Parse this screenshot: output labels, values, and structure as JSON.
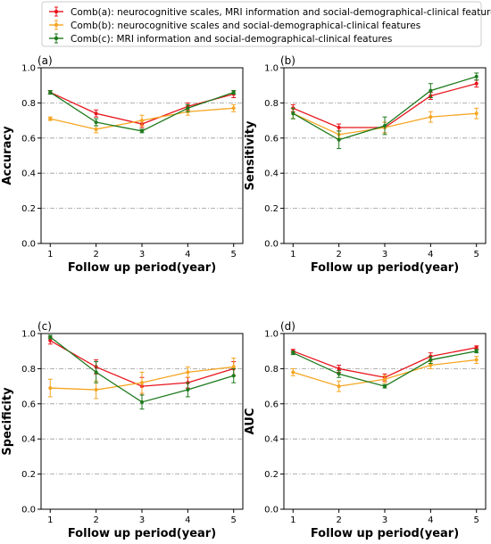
{
  "chart_data": {
    "type": "line",
    "legend": {
      "placement": "top-center",
      "entries": [
        {
          "name": "Comb(a): neurocognitive scales, MRI information and social-demographical-clinical features",
          "color": "#e8141c"
        },
        {
          "name": "Comb(b): neurocognitive scales and social-demographical-clinical features",
          "color": "#f5a623"
        },
        {
          "name": "Comb(c): MRI information and social-demographical-clinical features",
          "color": "#1e7a1e"
        }
      ]
    },
    "panels": [
      {
        "label": "(a)",
        "ylabel": "Accuracy",
        "xlabel": "Follow up period(year)",
        "x": [
          1,
          2,
          3,
          4,
          5
        ],
        "xticks": [
          "1",
          "2",
          "3",
          "4",
          "5"
        ],
        "ylim": [
          0.0,
          1.0
        ],
        "yticks": [
          "0.0",
          "0.2",
          "0.4",
          "0.6",
          "0.8",
          "1.0"
        ],
        "grid": "dash-dot horizontal",
        "series": [
          {
            "values": [
              0.86,
              0.74,
              0.68,
              0.78,
              0.85
            ],
            "err": [
              0.01,
              0.02,
              0.02,
              0.02,
              0.02
            ]
          },
          {
            "values": [
              0.71,
              0.65,
              0.7,
              0.75,
              0.77
            ],
            "err": [
              0.01,
              0.02,
              0.03,
              0.02,
              0.02
            ]
          },
          {
            "values": [
              0.86,
              0.69,
              0.64,
              0.77,
              0.86
            ],
            "err": [
              0.01,
              0.02,
              0.01,
              0.02,
              0.01
            ]
          }
        ]
      },
      {
        "label": "(b)",
        "ylabel": "Sensitivity",
        "xlabel": "Follow up period(year)",
        "x": [
          1,
          2,
          3,
          4,
          5
        ],
        "xticks": [
          "1",
          "2",
          "3",
          "4",
          "5"
        ],
        "ylim": [
          0.0,
          1.0
        ],
        "yticks": [
          "0.0",
          "0.2",
          "0.4",
          "0.6",
          "0.8",
          "1.0"
        ],
        "grid": "dash-dot horizontal",
        "series": [
          {
            "values": [
              0.77,
              0.66,
              0.66,
              0.84,
              0.91
            ],
            "err": [
              0.02,
              0.02,
              0.03,
              0.02,
              0.02
            ]
          },
          {
            "values": [
              0.74,
              0.62,
              0.66,
              0.72,
              0.74
            ],
            "err": [
              0.03,
              0.02,
              0.03,
              0.03,
              0.03
            ]
          },
          {
            "values": [
              0.74,
              0.59,
              0.67,
              0.87,
              0.95
            ],
            "err": [
              0.03,
              0.05,
              0.05,
              0.04,
              0.02
            ]
          }
        ]
      },
      {
        "label": "(c)",
        "ylabel": "Specificity",
        "xlabel": "Follow up period(year)",
        "x": [
          1,
          2,
          3,
          4,
          5
        ],
        "xticks": [
          "1",
          "2",
          "3",
          "4",
          "5"
        ],
        "ylim": [
          0.0,
          1.0
        ],
        "yticks": [
          "0.0",
          "0.2",
          "0.4",
          "0.6",
          "0.8",
          "1.0"
        ],
        "grid": "dash-dot horizontal",
        "series": [
          {
            "values": [
              0.96,
              0.81,
              0.7,
              0.72,
              0.8
            ],
            "err": [
              0.02,
              0.04,
              0.05,
              0.03,
              0.04
            ]
          },
          {
            "values": [
              0.69,
              0.68,
              0.72,
              0.78,
              0.81
            ],
            "err": [
              0.05,
              0.05,
              0.06,
              0.03,
              0.05
            ]
          },
          {
            "values": [
              0.98,
              0.78,
              0.61,
              0.68,
              0.76
            ],
            "err": [
              0.01,
              0.06,
              0.04,
              0.04,
              0.04
            ]
          }
        ]
      },
      {
        "label": "(d)",
        "ylabel": "AUC",
        "xlabel": "Follow up period(year)",
        "x": [
          1,
          2,
          3,
          4,
          5
        ],
        "xticks": [
          "1",
          "2",
          "3",
          "4",
          "5"
        ],
        "ylim": [
          0.0,
          1.0
        ],
        "yticks": [
          "0.0",
          "0.2",
          "0.4",
          "0.6",
          "0.8",
          "1.0"
        ],
        "grid": "dash-dot horizontal",
        "series": [
          {
            "values": [
              0.9,
              0.8,
              0.75,
              0.87,
              0.92
            ],
            "err": [
              0.01,
              0.02,
              0.02,
              0.02,
              0.01
            ]
          },
          {
            "values": [
              0.78,
              0.7,
              0.74,
              0.82,
              0.85
            ],
            "err": [
              0.02,
              0.03,
              0.02,
              0.02,
              0.02
            ]
          },
          {
            "values": [
              0.89,
              0.77,
              0.7,
              0.85,
              0.9
            ],
            "err": [
              0.01,
              0.02,
              0.01,
              0.02,
              0.01
            ]
          }
        ]
      }
    ]
  }
}
